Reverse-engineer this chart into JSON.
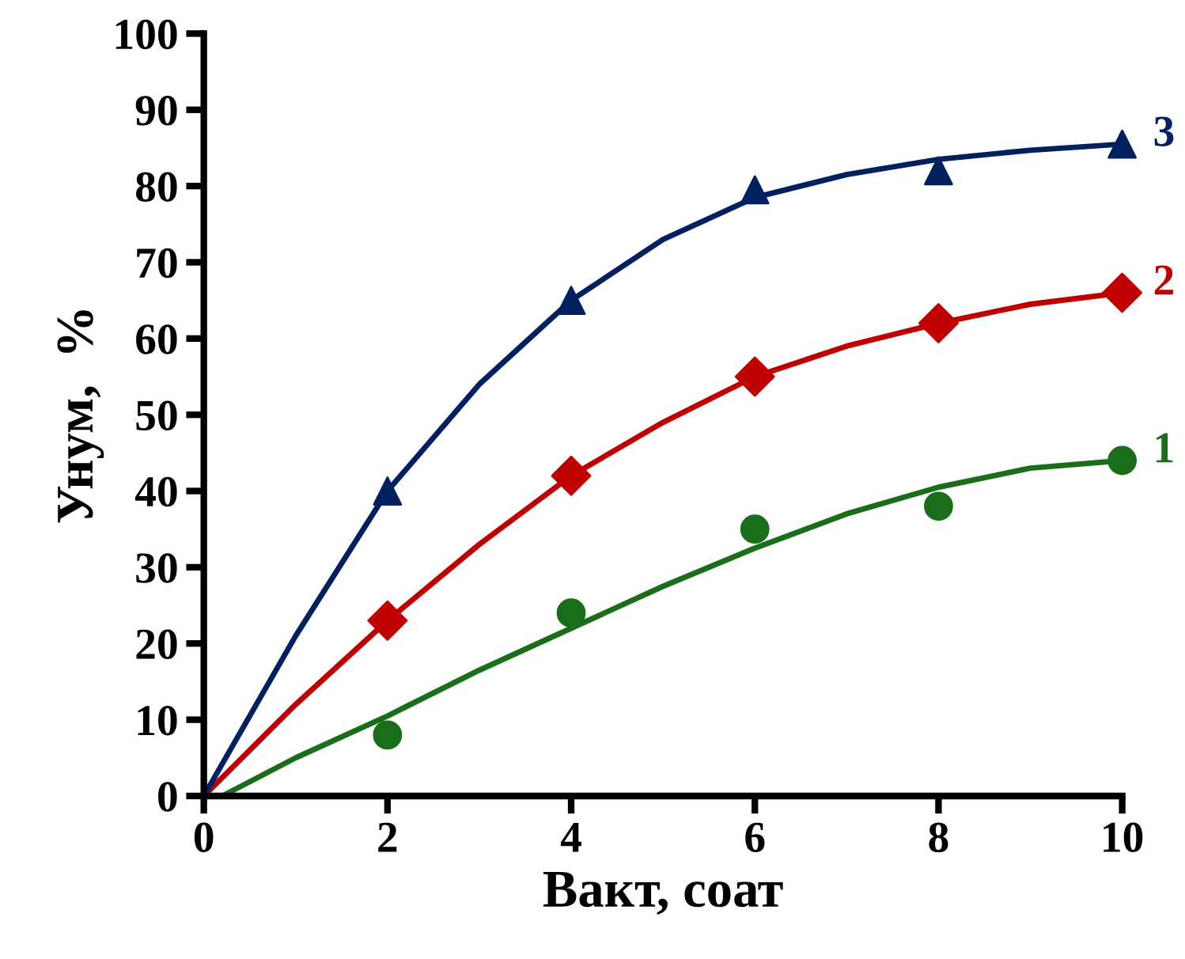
{
  "chart_data": {
    "type": "line",
    "xlabel": "Вакт, соат",
    "ylabel": "Унум,  %",
    "xlim": [
      0,
      10
    ],
    "ylim": [
      0,
      100
    ],
    "xticks": [
      0,
      2,
      4,
      6,
      8,
      10
    ],
    "yticks": [
      0,
      10,
      20,
      30,
      40,
      50,
      60,
      70,
      80,
      90,
      100
    ],
    "grid": false,
    "legend": false,
    "series": [
      {
        "color": "#1a6e1a",
        "marker": "none",
        "x": [
          0.2,
          1,
          2,
          3,
          4,
          5,
          6,
          7,
          8,
          9,
          10
        ],
        "values": [
          0,
          5,
          10.5,
          16.5,
          22,
          27.5,
          32.5,
          37,
          40.5,
          43,
          44
        ]
      },
      {
        "color": "#c00000",
        "marker": "none",
        "x": [
          0,
          1,
          2,
          3,
          4,
          5,
          6,
          7,
          8,
          9,
          10
        ],
        "values": [
          0,
          12,
          23,
          33,
          42,
          49,
          55,
          59,
          62,
          64.5,
          66
        ]
      },
      {
        "color": "#002060",
        "marker": "none",
        "x": [
          0,
          1,
          2,
          3,
          4,
          5,
          6,
          7,
          8,
          9,
          10
        ],
        "values": [
          0,
          21,
          40,
          54,
          65,
          73,
          78.5,
          81.5,
          83.5,
          84.7,
          85.5
        ]
      },
      {
        "type": "scatter",
        "name": "1",
        "color": "#1a6e1a",
        "marker": "circle",
        "x": [
          2,
          4,
          6,
          8,
          10
        ],
        "values": [
          8,
          24,
          35,
          38,
          44
        ]
      },
      {
        "type": "scatter",
        "name": "2",
        "color": "#c00000",
        "marker": "diamond",
        "x": [
          2,
          4,
          6,
          8,
          10
        ],
        "values": [
          23,
          42,
          55,
          62,
          66
        ]
      },
      {
        "type": "scatter",
        "name": "3",
        "color": "#002060",
        "marker": "triangle",
        "x": [
          2,
          4,
          6,
          8,
          10
        ],
        "values": [
          40,
          65,
          79.5,
          82,
          85.5
        ]
      }
    ]
  }
}
